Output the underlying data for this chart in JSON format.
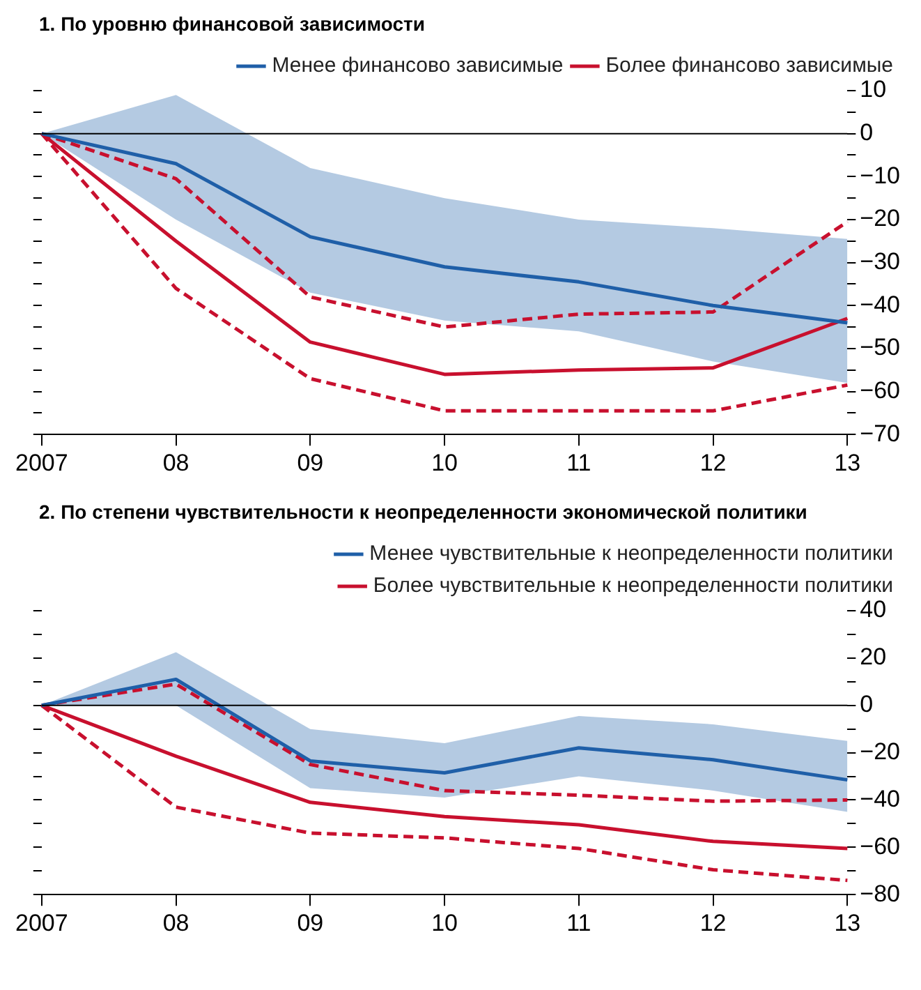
{
  "chart_data": [
    {
      "type": "line",
      "title": "1.  По уровню финансовой зависимости",
      "categories": [
        "2007",
        "08",
        "09",
        "10",
        "11",
        "12",
        "13"
      ],
      "ylim": [
        -70,
        10
      ],
      "yticks": [
        10,
        {
          "value": 5,
          "label": null
        },
        0,
        {
          "value": -5,
          "label": null
        },
        {
          "value": -10,
          "label": "−10"
        },
        {
          "value": -15,
          "label": null
        },
        {
          "value": -20,
          "label": "−20"
        },
        {
          "value": -25,
          "label": null
        },
        {
          "value": -30,
          "label": "−30"
        },
        {
          "value": -35,
          "label": null
        },
        {
          "value": -40,
          "label": "−40"
        },
        {
          "value": -45,
          "label": null
        },
        {
          "value": -50,
          "label": "−50"
        },
        {
          "value": -55,
          "label": null
        },
        {
          "value": -60,
          "label": "−60"
        },
        {
          "value": -65,
          "label": null
        },
        {
          "value": -70,
          "label": "−70"
        }
      ],
      "grid": false,
      "legend": "top right",
      "marker": "none",
      "ref_lines": [
        {
          "axis": "y",
          "value": 0,
          "color": "#000000"
        }
      ],
      "series": [
        {
          "name": "Менее финансово зависимые",
          "color": "#1f5fa8",
          "values": [
            0,
            -7,
            -24,
            -31,
            -34.5,
            -40,
            -44
          ],
          "lower": [
            0,
            -20,
            -37,
            -43.5,
            -46,
            -53,
            -58
          ],
          "upper": [
            0,
            9,
            -8,
            -15,
            -20,
            -22,
            -24.5
          ]
        },
        {
          "name": "Более финансово зависимые",
          "color": "#c8102e",
          "values": [
            0,
            -25,
            -48.5,
            -56,
            -55,
            -54.5,
            -43
          ]
        },
        {
          "color": "#c8102e",
          "line_style": "dashed",
          "values": [
            0,
            -10.5,
            -38,
            -45,
            -42,
            -41.5,
            -20.5
          ]
        },
        {
          "color": "#c8102e",
          "line_style": "dashed",
          "values": [
            0,
            -36,
            -57,
            -64.5,
            -64.5,
            -64.5,
            -58.5
          ]
        }
      ]
    },
    {
      "type": "line",
      "title": "2.  По степени чувствительности к неопределенности экономической политики",
      "categories": [
        "2007",
        "08",
        "09",
        "10",
        "11",
        "12",
        "13"
      ],
      "ylim": [
        -80,
        40
      ],
      "yticks": [
        40,
        {
          "value": 30,
          "label": null
        },
        20,
        {
          "value": 10,
          "label": null
        },
        0,
        {
          "value": -10,
          "label": null
        },
        {
          "value": -20,
          "label": "−20"
        },
        {
          "value": -30,
          "label": null
        },
        {
          "value": -40,
          "label": "−40"
        },
        {
          "value": -50,
          "label": null
        },
        {
          "value": -60,
          "label": "−60"
        },
        {
          "value": -70,
          "label": null
        },
        {
          "value": -80,
          "label": "−80"
        }
      ],
      "grid": false,
      "legend": "top right",
      "marker": "none",
      "ref_lines": [
        {
          "axis": "y",
          "value": 0,
          "color": "#000000"
        }
      ],
      "series": [
        {
          "name": "Менее чувствительные к неопределенности политики",
          "color": "#1f5fa8",
          "values": [
            0,
            11,
            -23.5,
            -28.5,
            -18,
            -23,
            -31.5
          ],
          "lower": [
            0,
            0,
            -35,
            -39,
            -30,
            -36,
            -45
          ],
          "upper": [
            0,
            22.5,
            -10,
            -16,
            -4.5,
            -8,
            -15
          ]
        },
        {
          "name": "Более чувствительные к неопределенности политики",
          "color": "#c8102e",
          "values": [
            0,
            -21.5,
            -41,
            -47,
            -50.5,
            -57.5,
            -60.5
          ]
        },
        {
          "color": "#c8102e",
          "line_style": "dashed",
          "values": [
            0,
            9,
            -25,
            -36,
            -38,
            -40.5,
            -40
          ]
        },
        {
          "color": "#c8102e",
          "line_style": "dashed",
          "values": [
            0,
            -43,
            -54,
            -56,
            -60.5,
            -69.5,
            -74
          ]
        }
      ]
    }
  ]
}
